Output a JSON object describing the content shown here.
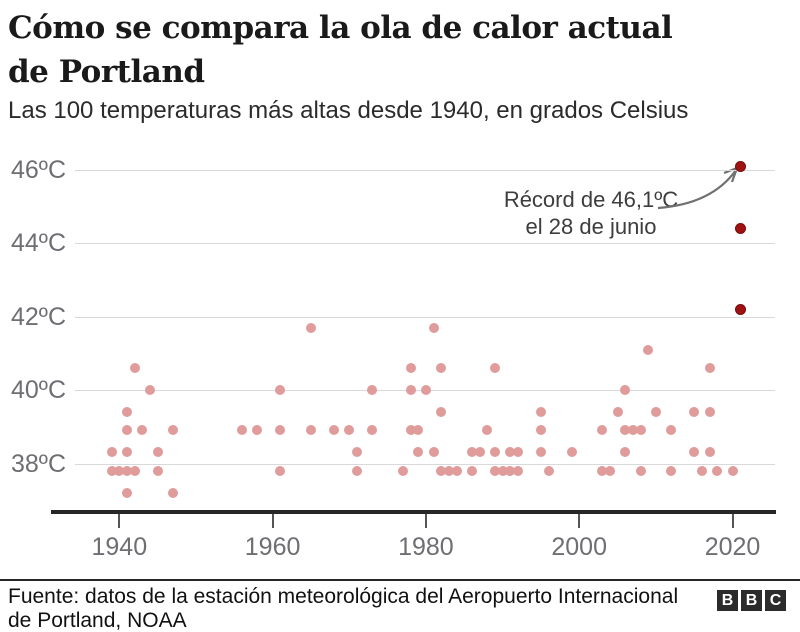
{
  "header": {
    "title_line1": "Cómo se compara la ola de calor actual",
    "title_line2": "de Portland",
    "subtitle": "Las 100 temperaturas más altas desde 1940, en grados Celsius"
  },
  "chart_data": {
    "type": "scatter",
    "title": "Cómo se compara la ola de calor actual de Portland",
    "subtitle": "Las 100 temperaturas más altas desde 1940, en grados Celsius",
    "xlabel": "",
    "ylabel": "grados Celsius",
    "xlim": [
      1931,
      2026
    ],
    "ylim": [
      36.7,
      46.6
    ],
    "grid": "horizontal",
    "legend": "none",
    "x_ticks": [
      1940,
      1960,
      1980,
      2000,
      2020
    ],
    "y_ticks": [
      {
        "value": 46,
        "label": "46ºC"
      },
      {
        "value": 44,
        "label": "44ºC"
      },
      {
        "value": 42,
        "label": "42ºC"
      },
      {
        "value": 40,
        "label": "40ºC"
      },
      {
        "value": 38,
        "label": "38ºC"
      }
    ],
    "colors": {
      "point": "#e09b9b",
      "record_point": "#9e1212",
      "record_point_border": "#7a0c0c",
      "grid": "#d9d9d9",
      "axis": "#262626",
      "tick": "#555555",
      "tick_label": "#6e6e73",
      "annotation_text": "#3d3d3d",
      "arrow": "#707070"
    },
    "annotation": {
      "line1": "Récord de 46,1ºC",
      "line2": "el 28 de junio",
      "target": {
        "year": 2021,
        "temp": 46.1
      }
    },
    "record_points": [
      [
        2021,
        46.1
      ],
      [
        2021,
        44.4
      ],
      [
        2021,
        42.2
      ]
    ],
    "points": [
      [
        1965,
        41.7
      ],
      [
        1981,
        41.7
      ],
      [
        2009,
        41.1
      ],
      [
        1942,
        40.6
      ],
      [
        1978,
        40.6
      ],
      [
        1982,
        40.6
      ],
      [
        1989,
        40.6
      ],
      [
        2017,
        40.6
      ],
      [
        1944,
        40.0
      ],
      [
        1961,
        40.0
      ],
      [
        1973,
        40.0
      ],
      [
        1978,
        40.0
      ],
      [
        1980,
        40.0
      ],
      [
        2006,
        40.0
      ],
      [
        1941,
        39.4
      ],
      [
        1982,
        39.4
      ],
      [
        1995,
        39.4
      ],
      [
        2005,
        39.4
      ],
      [
        2010,
        39.4
      ],
      [
        2015,
        39.4
      ],
      [
        2017,
        39.4
      ],
      [
        1941,
        38.9
      ],
      [
        1943,
        38.9
      ],
      [
        1947,
        38.9
      ],
      [
        1956,
        38.9
      ],
      [
        1958,
        38.9
      ],
      [
        1961,
        38.9
      ],
      [
        1965,
        38.9
      ],
      [
        1968,
        38.9
      ],
      [
        1970,
        38.9
      ],
      [
        1973,
        38.9
      ],
      [
        1978,
        38.9
      ],
      [
        1979,
        38.9
      ],
      [
        1988,
        38.9
      ],
      [
        1995,
        38.9
      ],
      [
        2003,
        38.9
      ],
      [
        2006,
        38.9
      ],
      [
        2007,
        38.9
      ],
      [
        2008,
        38.9
      ],
      [
        2012,
        38.9
      ],
      [
        1939,
        38.3
      ],
      [
        1941,
        38.3
      ],
      [
        1945,
        38.3
      ],
      [
        1971,
        38.3
      ],
      [
        1979,
        38.3
      ],
      [
        1981,
        38.3
      ],
      [
        1986,
        38.3
      ],
      [
        1987,
        38.3
      ],
      [
        1989,
        38.3
      ],
      [
        1991,
        38.3
      ],
      [
        1992,
        38.3
      ],
      [
        1995,
        38.3
      ],
      [
        1999,
        38.3
      ],
      [
        2006,
        38.3
      ],
      [
        2015,
        38.3
      ],
      [
        2017,
        38.3
      ],
      [
        1939,
        37.8
      ],
      [
        1940,
        37.8
      ],
      [
        1941,
        37.8
      ],
      [
        1942,
        37.8
      ],
      [
        1945,
        37.8
      ],
      [
        1961,
        37.8
      ],
      [
        1971,
        37.8
      ],
      [
        1977,
        37.8
      ],
      [
        1982,
        37.8
      ],
      [
        1983,
        37.8
      ],
      [
        1984,
        37.8
      ],
      [
        1986,
        37.8
      ],
      [
        1989,
        37.8
      ],
      [
        1990,
        37.8
      ],
      [
        1991,
        37.8
      ],
      [
        1992,
        37.8
      ],
      [
        1996,
        37.8
      ],
      [
        2003,
        37.8
      ],
      [
        2004,
        37.8
      ],
      [
        2008,
        37.8
      ],
      [
        2012,
        37.8
      ],
      [
        2016,
        37.8
      ],
      [
        2018,
        37.8
      ],
      [
        2020,
        37.8
      ],
      [
        1941,
        37.2
      ],
      [
        1947,
        37.2
      ]
    ]
  },
  "footer": {
    "source_line1": "Fuente: datos de la estación meteorológica del Aeropuerto Internacional",
    "source_line2": "de Portland, NOAA",
    "logo": [
      "B",
      "B",
      "C"
    ]
  }
}
